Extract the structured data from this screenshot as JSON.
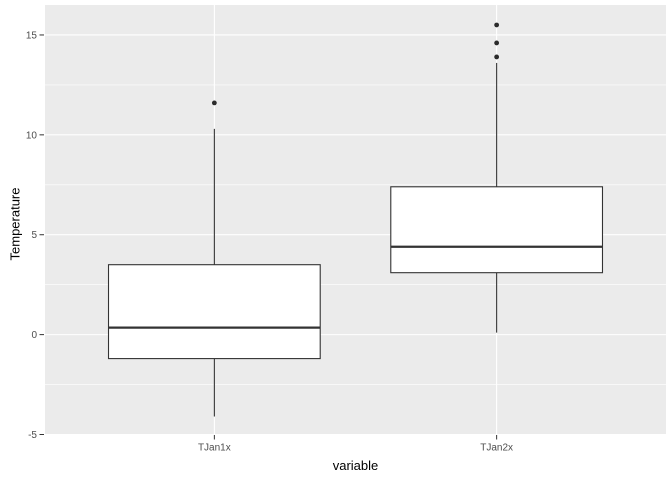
{
  "chart_data": {
    "type": "boxplot",
    "title": "",
    "xlabel": "variable",
    "ylabel": "Temperature",
    "categories": [
      "TJan1x",
      "TJan2x"
    ],
    "y_major_ticks": [
      -5,
      0,
      5,
      10,
      15
    ],
    "y_minor_ticks": [
      -2.5,
      2.5,
      7.5,
      12.5
    ],
    "ylim": [
      -5.0,
      16.5
    ],
    "grid": "major+minor horizontal, major vertical at categories",
    "legend_position": "none",
    "series": [
      {
        "name": "TJan1x",
        "whisker_low": -4.1,
        "q1": -1.2,
        "median": 0.35,
        "q3": 3.5,
        "whisker_high": 10.3,
        "outliers": [
          11.6
        ]
      },
      {
        "name": "TJan2x",
        "whisker_low": 0.1,
        "q1": 3.1,
        "median": 4.4,
        "q3": 7.4,
        "whisker_high": 13.6,
        "outliers": [
          13.9,
          14.6,
          15.5
        ]
      }
    ],
    "theme": {
      "panel_bg": "#EBEBEB",
      "grid_color": "#FFFFFF",
      "box_fill": "#FFFFFF",
      "box_stroke": "#333333",
      "outlier_color": "#2B2B2B",
      "tick_mark_color": "#333333",
      "tick_label_color": "#4D4D4D",
      "axis_title_color": "#000000"
    }
  }
}
